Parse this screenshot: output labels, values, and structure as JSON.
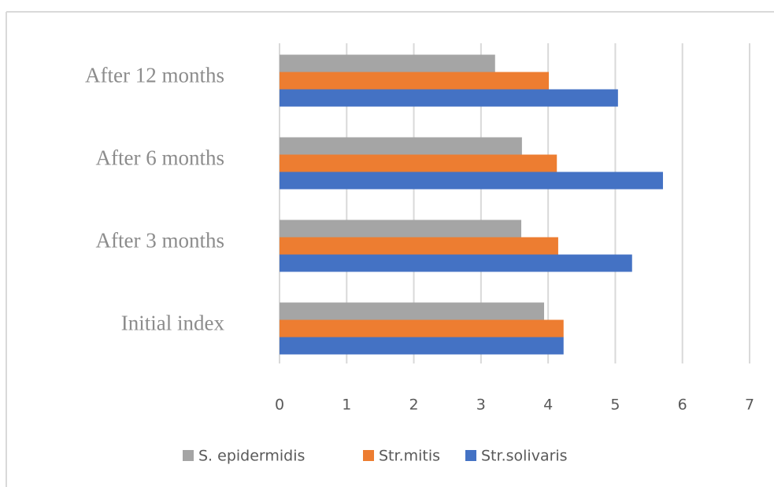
{
  "chart_data": {
    "type": "barh",
    "categories": [
      "Initial index",
      "After 3 months",
      "After 6 months",
      "After 12 months"
    ],
    "series": [
      {
        "name": "S. epidermidis",
        "color": "#a5a5a5",
        "values": [
          3.94,
          3.6,
          3.61,
          3.21
        ]
      },
      {
        "name": "Str.mitis",
        "color": "#ed7d31",
        "values": [
          4.23,
          4.15,
          4.13,
          4.01
        ]
      },
      {
        "name": "Str.solivaris",
        "color": "#4472c4",
        "values": [
          4.23,
          5.25,
          5.71,
          5.04
        ]
      }
    ],
    "xlim": [
      0,
      7
    ],
    "xticks": [
      0,
      1,
      2,
      3,
      4,
      5,
      6,
      7
    ],
    "grid": true,
    "legend": "bottom"
  }
}
